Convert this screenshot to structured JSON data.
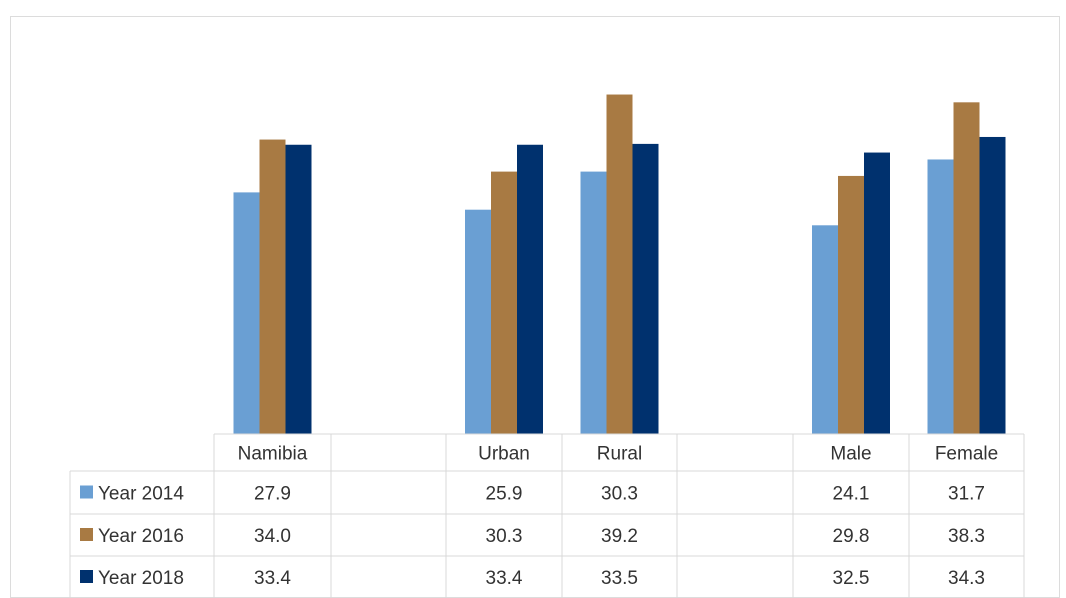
{
  "chart_data": {
    "type": "bar",
    "title": "",
    "xlabel": "",
    "ylabel": "",
    "ylim": [
      0,
      40
    ],
    "grid": false,
    "legend": "bottom-left (data table legend keys)",
    "categories": [
      "Namibia",
      "",
      "Urban",
      "Rural",
      "",
      "Male",
      "Female"
    ],
    "series": [
      {
        "name": "Year 2014",
        "color": "#6a9fd3",
        "values": [
          27.9,
          null,
          25.9,
          30.3,
          null,
          24.1,
          31.7
        ],
        "labels": [
          "27.9",
          "",
          "25.9",
          "30.3",
          "",
          "24.1",
          "31.7"
        ]
      },
      {
        "name": "Year 2016",
        "color": "#a87a43",
        "values": [
          34.0,
          null,
          30.3,
          39.2,
          null,
          29.8,
          38.3
        ],
        "labels": [
          "34.0",
          "",
          "30.3",
          "39.2",
          "",
          "29.8",
          "38.3"
        ]
      },
      {
        "name": "Year 2018",
        "color": "#00316e",
        "values": [
          33.4,
          null,
          33.4,
          33.5,
          null,
          32.5,
          34.3
        ],
        "labels": [
          "33.4",
          "",
          "33.4",
          "33.5",
          "",
          "32.5",
          "34.3"
        ]
      }
    ]
  }
}
